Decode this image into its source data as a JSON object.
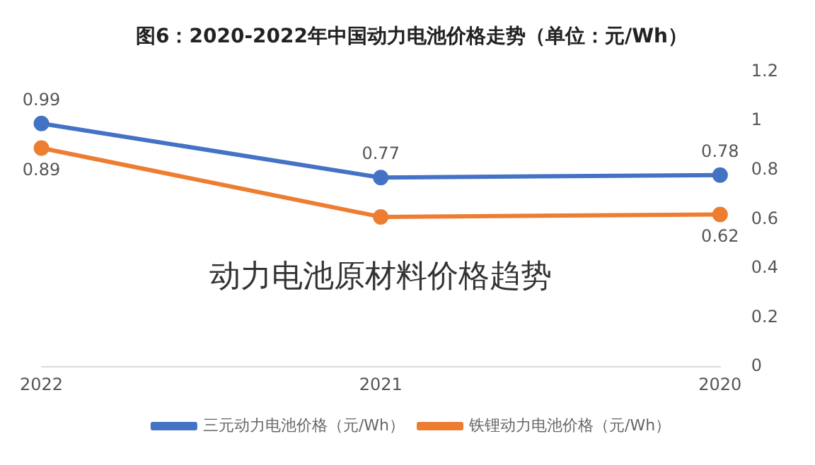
{
  "chart_data": {
    "type": "line",
    "title": "图6：2020-2022年中国动力电池价格走势（单位：元/Wh）",
    "categories": [
      "2022",
      "2021",
      "2020"
    ],
    "series": [
      {
        "name": "三元动力电池价格（元/Wh）",
        "color": "#4472c4",
        "values": [
          0.99,
          0.77,
          0.78
        ],
        "value_labels": [
          "0.99",
          "0.77",
          "0.78"
        ]
      },
      {
        "name": "铁锂动力电池价格（元/Wh）",
        "color": "#ed7d31",
        "values": [
          0.89,
          0.61,
          0.62
        ],
        "value_labels": [
          "0.89",
          null,
          "0.62"
        ]
      }
    ],
    "ylim": [
      0,
      1.2
    ],
    "yticks": [
      0,
      0.2,
      0.4,
      0.6,
      0.8,
      1,
      1.2
    ],
    "grid": false,
    "legend": "bottom",
    "marker": "circle",
    "line_style": "solid",
    "annotations": [
      "动力电池原材料价格趋势"
    ]
  }
}
